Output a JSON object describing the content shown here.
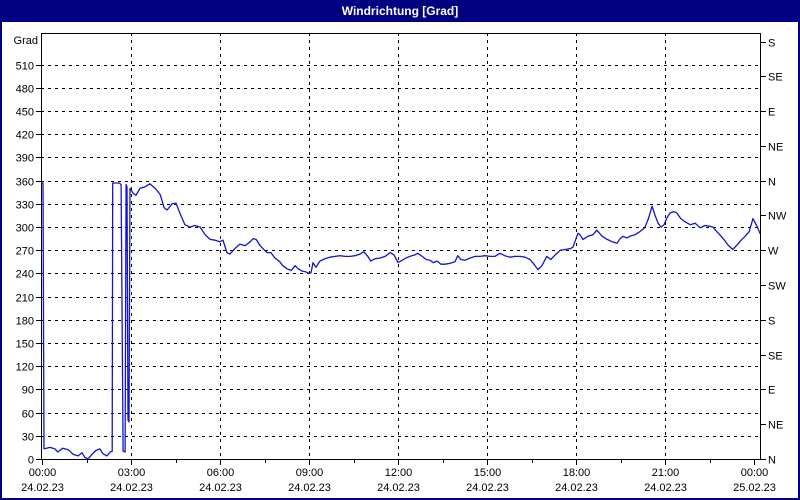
{
  "title": "Windrichtung [Grad]",
  "colors": {
    "titlebar_bg": "#000080",
    "titlebar_text": "#ffffff",
    "window_border": "#000080",
    "plot_bg": "#ffffff",
    "grid": "#000000",
    "text": "#000000",
    "series_line": "#1414cc"
  },
  "chart_data": {
    "type": "line",
    "title": "Windrichtung [Grad]",
    "ylabel": "Grad",
    "ylim": [
      0,
      551
    ],
    "xlim_minutes": [
      0,
      1452
    ],
    "grid_h_step": 30,
    "grid_h_range": [
      30,
      510
    ],
    "y_left_ticks": [
      0,
      30,
      60,
      90,
      120,
      150,
      180,
      210,
      240,
      270,
      300,
      330,
      360,
      390,
      420,
      450,
      480,
      510
    ],
    "y_right_ticks": [
      {
        "value": 0,
        "label": "N"
      },
      {
        "value": 45,
        "label": "NE"
      },
      {
        "value": 90,
        "label": "E"
      },
      {
        "value": 135,
        "label": "SE"
      },
      {
        "value": 180,
        "label": "S"
      },
      {
        "value": 225,
        "label": "SW"
      },
      {
        "value": 270,
        "label": "W"
      },
      {
        "value": 315,
        "label": "NW"
      },
      {
        "value": 360,
        "label": "N"
      },
      {
        "value": 405,
        "label": "NE"
      },
      {
        "value": 450,
        "label": "E"
      },
      {
        "value": 495,
        "label": "SE"
      },
      {
        "value": 540,
        "label": "S"
      }
    ],
    "x_ticks": [
      {
        "minutes": 0,
        "time": "00:00",
        "date": "24.02.23",
        "grid": false
      },
      {
        "minutes": 180,
        "time": "03:00",
        "date": "24.02.23",
        "grid": true
      },
      {
        "minutes": 360,
        "time": "06:00",
        "date": "24.02.23",
        "grid": true
      },
      {
        "minutes": 540,
        "time": "09:00",
        "date": "24.02.23",
        "grid": true
      },
      {
        "minutes": 720,
        "time": "12:00",
        "date": "24.02.23",
        "grid": true
      },
      {
        "minutes": 900,
        "time": "15:00",
        "date": "24.02.23",
        "grid": true
      },
      {
        "minutes": 1080,
        "time": "18:00",
        "date": "24.02.23",
        "grid": true
      },
      {
        "minutes": 1260,
        "time": "21:00",
        "date": "24.02.23",
        "grid": true
      },
      {
        "minutes": 1440,
        "time": "00:00",
        "date": "25.02.23",
        "grid": false
      }
    ],
    "x_minor_ticks_minutes": [
      90,
      270,
      450,
      630,
      810,
      990,
      1170,
      1350
    ],
    "series": [
      {
        "name": "Windrichtung",
        "color": "#1414cc",
        "points": [
          [
            0,
            357
          ],
          [
            2,
            357
          ],
          [
            4,
            13
          ],
          [
            16,
            15
          ],
          [
            26,
            13
          ],
          [
            32,
            9
          ],
          [
            42,
            14
          ],
          [
            53,
            12
          ],
          [
            63,
            6
          ],
          [
            73,
            4
          ],
          [
            81,
            8
          ],
          [
            87,
            2
          ],
          [
            93,
            0
          ],
          [
            101,
            6
          ],
          [
            109,
            11
          ],
          [
            117,
            13
          ],
          [
            123,
            7
          ],
          [
            131,
            4
          ],
          [
            138,
            9
          ],
          [
            142,
            10
          ],
          [
            143,
            357
          ],
          [
            156,
            357
          ],
          [
            160,
            355
          ],
          [
            164,
            10
          ],
          [
            168,
            9
          ],
          [
            170,
            355
          ],
          [
            172,
            352
          ],
          [
            174,
            50
          ],
          [
            176,
            48
          ],
          [
            178,
            350
          ],
          [
            184,
            344
          ],
          [
            190,
            341
          ],
          [
            198,
            350
          ],
          [
            208,
            352
          ],
          [
            218,
            356
          ],
          [
            229,
            350
          ],
          [
            239,
            342
          ],
          [
            247,
            325
          ],
          [
            253,
            322
          ],
          [
            263,
            330
          ],
          [
            271,
            331
          ],
          [
            279,
            318
          ],
          [
            289,
            303
          ],
          [
            299,
            300
          ],
          [
            309,
            302
          ],
          [
            320,
            300
          ],
          [
            330,
            290
          ],
          [
            340,
            284
          ],
          [
            350,
            283
          ],
          [
            360,
            281
          ],
          [
            366,
            283
          ],
          [
            374,
            267
          ],
          [
            380,
            265
          ],
          [
            390,
            272
          ],
          [
            400,
            278
          ],
          [
            411,
            276
          ],
          [
            421,
            281
          ],
          [
            427,
            285
          ],
          [
            433,
            284
          ],
          [
            441,
            276
          ],
          [
            447,
            272
          ],
          [
            455,
            267
          ],
          [
            463,
            267
          ],
          [
            471,
            260
          ],
          [
            481,
            255
          ],
          [
            487,
            250
          ],
          [
            496,
            246
          ],
          [
            504,
            244
          ],
          [
            512,
            250
          ],
          [
            518,
            246
          ],
          [
            526,
            243
          ],
          [
            534,
            242
          ],
          [
            540,
            240
          ],
          [
            544,
            241
          ],
          [
            548,
            254
          ],
          [
            554,
            248
          ],
          [
            562,
            256
          ],
          [
            572,
            259
          ],
          [
            582,
            261
          ],
          [
            593,
            262
          ],
          [
            603,
            263
          ],
          [
            613,
            262
          ],
          [
            623,
            262
          ],
          [
            633,
            263
          ],
          [
            643,
            265
          ],
          [
            651,
            268
          ],
          [
            659,
            262
          ],
          [
            665,
            256
          ],
          [
            673,
            259
          ],
          [
            684,
            260
          ],
          [
            694,
            262
          ],
          [
            704,
            267
          ],
          [
            712,
            264
          ],
          [
            720,
            254
          ],
          [
            728,
            257
          ],
          [
            736,
            260
          ],
          [
            744,
            262
          ],
          [
            754,
            264
          ],
          [
            760,
            266
          ],
          [
            769,
            262
          ],
          [
            777,
            258
          ],
          [
            785,
            257
          ],
          [
            791,
            254
          ],
          [
            799,
            256
          ],
          [
            807,
            252
          ],
          [
            815,
            252
          ],
          [
            825,
            253
          ],
          [
            835,
            255
          ],
          [
            841,
            263
          ],
          [
            847,
            258
          ],
          [
            855,
            257
          ],
          [
            866,
            260
          ],
          [
            876,
            262
          ],
          [
            886,
            262
          ],
          [
            896,
            263
          ],
          [
            906,
            262
          ],
          [
            916,
            262
          ],
          [
            926,
            266
          ],
          [
            936,
            263
          ],
          [
            947,
            261
          ],
          [
            957,
            262
          ],
          [
            967,
            262
          ],
          [
            977,
            261
          ],
          [
            987,
            258
          ],
          [
            995,
            252
          ],
          [
            1003,
            245
          ],
          [
            1011,
            250
          ],
          [
            1021,
            262
          ],
          [
            1029,
            258
          ],
          [
            1038,
            264
          ],
          [
            1048,
            270
          ],
          [
            1058,
            271
          ],
          [
            1068,
            272
          ],
          [
            1074,
            274
          ],
          [
            1080,
            285
          ],
          [
            1084,
            292
          ],
          [
            1088,
            290
          ],
          [
            1094,
            284
          ],
          [
            1104,
            288
          ],
          [
            1114,
            290
          ],
          [
            1122,
            296
          ],
          [
            1133,
            288
          ],
          [
            1143,
            284
          ],
          [
            1153,
            281
          ],
          [
            1163,
            279
          ],
          [
            1169,
            285
          ],
          [
            1175,
            288
          ],
          [
            1183,
            286
          ],
          [
            1189,
            288
          ],
          [
            1199,
            290
          ],
          [
            1209,
            294
          ],
          [
            1219,
            299
          ],
          [
            1226,
            310
          ],
          [
            1234,
            327
          ],
          [
            1240,
            315
          ],
          [
            1246,
            305
          ],
          [
            1252,
            300
          ],
          [
            1258,
            303
          ],
          [
            1264,
            312
          ],
          [
            1270,
            318
          ],
          [
            1278,
            320
          ],
          [
            1284,
            318
          ],
          [
            1292,
            311
          ],
          [
            1300,
            307
          ],
          [
            1311,
            303
          ],
          [
            1321,
            305
          ],
          [
            1331,
            299
          ],
          [
            1341,
            302
          ],
          [
            1351,
            301
          ],
          [
            1357,
            300
          ],
          [
            1365,
            294
          ],
          [
            1371,
            290
          ],
          [
            1379,
            284
          ],
          [
            1387,
            277
          ],
          [
            1397,
            271
          ],
          [
            1406,
            277
          ],
          [
            1414,
            283
          ],
          [
            1422,
            288
          ],
          [
            1430,
            294
          ],
          [
            1438,
            311
          ],
          [
            1446,
            301
          ],
          [
            1452,
            292
          ]
        ]
      }
    ]
  }
}
